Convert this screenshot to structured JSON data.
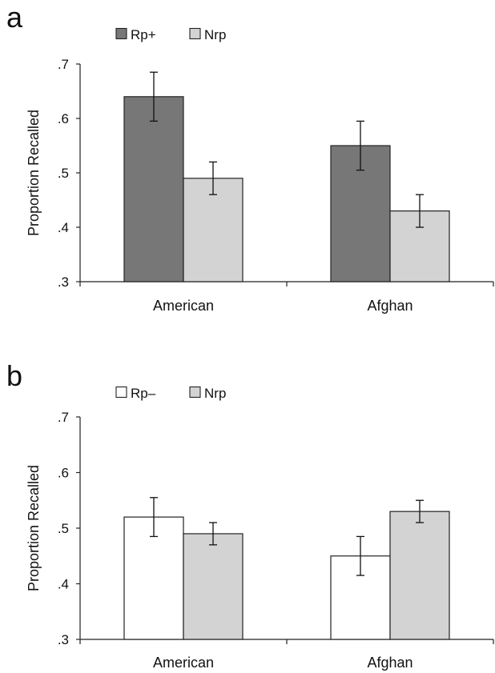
{
  "chart_data": [
    {
      "type": "bar",
      "panel_label": "a",
      "title": "",
      "xlabel": "",
      "ylabel": "Proportion Recalled",
      "ylim": [
        0.3,
        0.7
      ],
      "y_ticks": [
        {
          "value": 0.7,
          "label": ".7"
        },
        {
          "value": 0.6,
          "label": ".6"
        },
        {
          "value": 0.5,
          "label": ".5"
        },
        {
          "value": 0.4,
          "label": ".4"
        },
        {
          "value": 0.3,
          "label": ".3"
        }
      ],
      "categories": [
        "American",
        "Afghan"
      ],
      "series": [
        {
          "name": "Rp+",
          "color": "#777777",
          "values": [
            0.64,
            0.55
          ],
          "error": [
            0.045,
            0.045
          ]
        },
        {
          "name": "Nrp",
          "color": "#d3d3d3",
          "values": [
            0.49,
            0.43
          ],
          "error": [
            0.03,
            0.03
          ]
        }
      ],
      "legend_position": "top-left",
      "grid": false
    },
    {
      "type": "bar",
      "panel_label": "b",
      "title": "",
      "xlabel": "",
      "ylabel": "Proportion Recalled",
      "ylim": [
        0.3,
        0.7
      ],
      "y_ticks": [
        {
          "value": 0.7,
          "label": ".7"
        },
        {
          "value": 0.6,
          "label": ".6"
        },
        {
          "value": 0.5,
          "label": ".5"
        },
        {
          "value": 0.4,
          "label": ".4"
        },
        {
          "value": 0.3,
          "label": ".3"
        }
      ],
      "categories": [
        "American",
        "Afghan"
      ],
      "series": [
        {
          "name": "Rp–",
          "color": "#ffffff",
          "values": [
            0.52,
            0.45
          ],
          "error": [
            0.035,
            0.035
          ]
        },
        {
          "name": "Nrp",
          "color": "#d3d3d3",
          "values": [
            0.49,
            0.53
          ],
          "error": [
            0.02,
            0.02
          ]
        }
      ],
      "legend_position": "top-left",
      "grid": false
    }
  ]
}
